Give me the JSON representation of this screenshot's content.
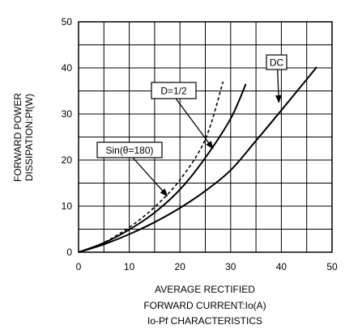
{
  "chart_data": {
    "type": "line",
    "xlabel_lines": [
      "AVERAGE RECTIFIED",
      "FORWARD CURRENT:Io(A)"
    ],
    "ylabel_lines": [
      "FORWARD POWER",
      "DISSIPATION:Pf(W)"
    ],
    "caption": "Io-Pf CHARACTERISTICS",
    "xlim": [
      0,
      50
    ],
    "ylim": [
      0,
      50
    ],
    "xticks": [
      0,
      10,
      20,
      30,
      40,
      50
    ],
    "yticks": [
      0,
      10,
      20,
      30,
      40,
      50
    ],
    "grid": true,
    "series": [
      {
        "name": "DC",
        "style": "solid",
        "x": [
          0,
          5,
          10,
          15,
          20,
          25,
          30,
          35,
          40,
          47
        ],
        "y": [
          0,
          1.7,
          3.9,
          6.5,
          9.6,
          13.3,
          17.8,
          24.2,
          30.8,
          40.2
        ]
      },
      {
        "name": "D=1/2",
        "style": "solid",
        "x": [
          0,
          5,
          10,
          15,
          20,
          25,
          30,
          33
        ],
        "y": [
          0,
          2.0,
          4.9,
          8.6,
          13.6,
          20.5,
          29.0,
          36.5
        ]
      },
      {
        "name": "Sin(θ=180)",
        "style": "dashed",
        "x": [
          0,
          5,
          10,
          15,
          20,
          25,
          28.5
        ],
        "y": [
          0,
          2.1,
          5.4,
          9.8,
          15.7,
          24.5,
          37.0
        ]
      }
    ],
    "annotations": [
      {
        "text": "DC",
        "series": 0
      },
      {
        "text": "D=1/2",
        "series": 1
      },
      {
        "text": "Sin(θ=180)",
        "series": 2
      }
    ]
  }
}
